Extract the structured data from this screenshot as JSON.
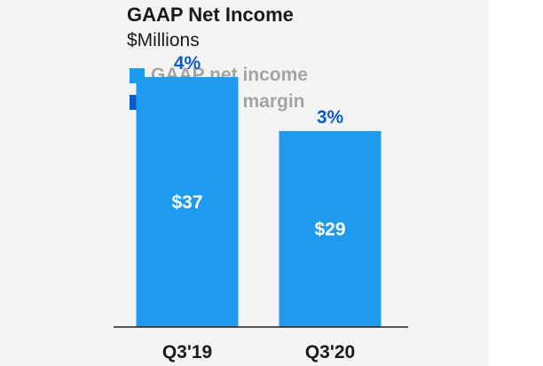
{
  "colors": {
    "income": "#1e9bef",
    "margin": "#0b5cc4",
    "axis": "#222222"
  },
  "chart_data": {
    "type": "bar",
    "title": "GAAP Net Income",
    "subtitle": "$Millions",
    "categories": [
      "Q3'19",
      "Q3'20"
    ],
    "series": [
      {
        "name": "GAAP net income",
        "values": [
          37,
          29
        ],
        "value_labels": [
          "$37",
          "$29"
        ]
      },
      {
        "name": "GAAP net margin",
        "values": [
          4,
          3
        ],
        "value_labels": [
          "4%",
          "3%"
        ]
      }
    ],
    "xlabel": "",
    "ylabel": "",
    "ylim": [
      0,
      40
    ],
    "grid": false,
    "legend": "top-left"
  }
}
